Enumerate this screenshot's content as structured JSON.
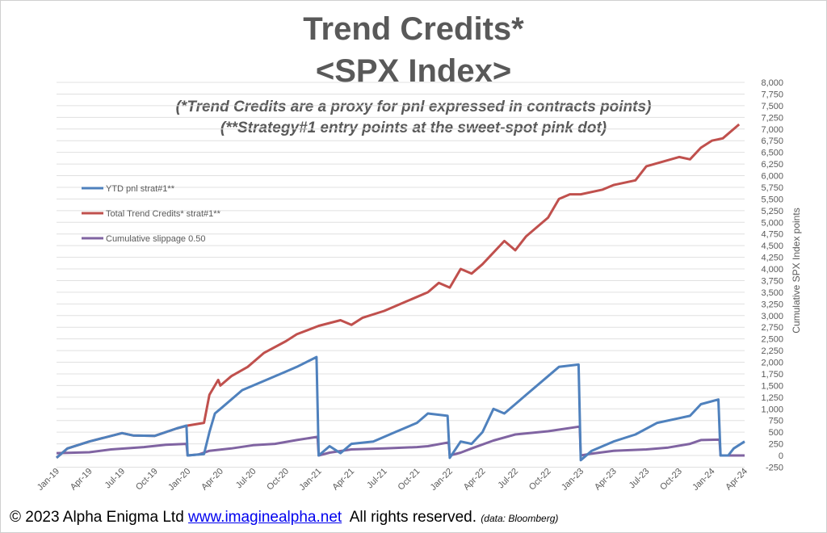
{
  "chart_data": {
    "type": "line",
    "title": "Trend Credits*",
    "subtitle": "<SPX Index>",
    "annotations": [
      "(*Trend Credits are a proxy for pnl expressed in contracts points)",
      "(**Strategy#1 entry points at the sweet-spot pink dot)"
    ],
    "ylabel": "Cumulative SPX Index  points",
    "ylim": [
      -250,
      8000
    ],
    "ytick_step": 250,
    "yticks": [
      "-250",
      "0",
      "250",
      "500",
      "750",
      "1,000",
      "1,250",
      "1,500",
      "1,750",
      "2,000",
      "2,250",
      "2,500",
      "2,750",
      "3,000",
      "3,250",
      "3,500",
      "3,750",
      "4,000",
      "4,250",
      "4,500",
      "4,750",
      "5,000",
      "5,250",
      "5,500",
      "5,750",
      "6,000",
      "6,250",
      "6,500",
      "6,750",
      "7,000",
      "7,250",
      "7,500",
      "7,750",
      "8,000"
    ],
    "xticks": [
      "Jan-19",
      "Apr-19",
      "Jul-19",
      "Oct-19",
      "Jan-20",
      "Apr-20",
      "Jul-20",
      "Oct-20",
      "Jan-21",
      "Apr-21",
      "Jul-21",
      "Oct-21",
      "Jan-22",
      "Apr-22",
      "Jul-22",
      "Oct-22",
      "Jan-23",
      "Apr-23",
      "Jul-23",
      "Oct-23",
      "Jan-24",
      "Apr-24"
    ],
    "x_unit": "months since Jan-19",
    "grid": true,
    "legend_position": "left",
    "series": [
      {
        "name": "YTD pnl strat#1**",
        "color": "#4f81bd",
        "points": [
          [
            0,
            -50
          ],
          [
            1,
            150
          ],
          [
            3,
            300
          ],
          [
            6,
            480
          ],
          [
            7,
            430
          ],
          [
            9,
            420
          ],
          [
            11,
            580
          ],
          [
            11.9,
            640
          ],
          [
            12,
            0
          ],
          [
            13.5,
            30
          ],
          [
            14,
            500
          ],
          [
            14.5,
            900
          ],
          [
            15,
            1000
          ],
          [
            17,
            1400
          ],
          [
            19,
            1600
          ],
          [
            21,
            1800
          ],
          [
            22,
            1900
          ],
          [
            23.8,
            2110
          ],
          [
            24,
            0
          ],
          [
            25,
            200
          ],
          [
            26,
            50
          ],
          [
            27,
            250
          ],
          [
            29,
            300
          ],
          [
            31,
            500
          ],
          [
            33,
            700
          ],
          [
            34,
            900
          ],
          [
            35.8,
            850
          ],
          [
            36,
            -50
          ],
          [
            37,
            300
          ],
          [
            38,
            250
          ],
          [
            39,
            500
          ],
          [
            40,
            1000
          ],
          [
            41,
            900
          ],
          [
            42,
            1100
          ],
          [
            43,
            1300
          ],
          [
            45,
            1700
          ],
          [
            46,
            1900
          ],
          [
            47.8,
            1950
          ],
          [
            48,
            -100
          ],
          [
            49,
            100
          ],
          [
            51,
            300
          ],
          [
            53,
            450
          ],
          [
            55,
            700
          ],
          [
            57,
            800
          ],
          [
            58,
            850
          ],
          [
            59,
            1100
          ],
          [
            60.6,
            1200
          ],
          [
            60.8,
            0
          ],
          [
            61.5,
            0
          ],
          [
            62,
            150
          ],
          [
            63,
            300
          ]
        ]
      },
      {
        "name": "Total Trend Credits* strat#1**",
        "color": "#c0504d",
        "points": [
          [
            0,
            -50
          ],
          [
            1,
            150
          ],
          [
            3,
            300
          ],
          [
            6,
            480
          ],
          [
            7,
            430
          ],
          [
            9,
            420
          ],
          [
            11,
            580
          ],
          [
            12,
            640
          ],
          [
            13.5,
            700
          ],
          [
            14,
            1300
          ],
          [
            14.8,
            1620
          ],
          [
            15,
            1500
          ],
          [
            16,
            1700
          ],
          [
            17.5,
            1900
          ],
          [
            19,
            2200
          ],
          [
            21,
            2450
          ],
          [
            22,
            2600
          ],
          [
            24,
            2780
          ],
          [
            26,
            2900
          ],
          [
            27,
            2800
          ],
          [
            28,
            2950
          ],
          [
            30,
            3100
          ],
          [
            32,
            3300
          ],
          [
            34,
            3500
          ],
          [
            35,
            3700
          ],
          [
            36,
            3600
          ],
          [
            37,
            4000
          ],
          [
            38,
            3900
          ],
          [
            39,
            4100
          ],
          [
            41,
            4600
          ],
          [
            42,
            4400
          ],
          [
            43,
            4700
          ],
          [
            45,
            5100
          ],
          [
            46,
            5500
          ],
          [
            47,
            5600
          ],
          [
            48,
            5600
          ],
          [
            50,
            5700
          ],
          [
            51,
            5800
          ],
          [
            53,
            5900
          ],
          [
            54,
            6200
          ],
          [
            57,
            6400
          ],
          [
            58,
            6350
          ],
          [
            59,
            6600
          ],
          [
            60,
            6750
          ],
          [
            61,
            6800
          ],
          [
            62.5,
            7100
          ]
        ]
      },
      {
        "name": "Cumulative slippage  0.50",
        "color": "#8064a2",
        "points": [
          [
            0,
            50
          ],
          [
            3,
            70
          ],
          [
            5,
            130
          ],
          [
            8,
            180
          ],
          [
            10,
            230
          ],
          [
            11.9,
            250
          ],
          [
            12,
            0
          ],
          [
            13,
            20
          ],
          [
            14,
            100
          ],
          [
            16,
            150
          ],
          [
            18,
            220
          ],
          [
            20,
            250
          ],
          [
            22,
            330
          ],
          [
            23.9,
            400
          ],
          [
            24,
            0
          ],
          [
            25,
            60
          ],
          [
            27,
            130
          ],
          [
            30,
            150
          ],
          [
            33,
            180
          ],
          [
            34,
            200
          ],
          [
            35.9,
            280
          ],
          [
            36,
            0
          ],
          [
            37,
            60
          ],
          [
            38,
            150
          ],
          [
            40,
            320
          ],
          [
            42,
            450
          ],
          [
            45,
            520
          ],
          [
            47.9,
            620
          ],
          [
            48,
            0
          ],
          [
            49,
            40
          ],
          [
            51,
            100
          ],
          [
            54,
            130
          ],
          [
            56,
            170
          ],
          [
            58,
            250
          ],
          [
            59,
            330
          ],
          [
            60.7,
            340
          ],
          [
            60.8,
            0
          ],
          [
            63,
            0
          ]
        ]
      }
    ]
  },
  "footer": {
    "copyright": "© 2023 Alpha Enigma Ltd",
    "link": "www.imaginealpha.net",
    "rights": "All rights reserved.",
    "source": "(data: Bloomberg)"
  }
}
